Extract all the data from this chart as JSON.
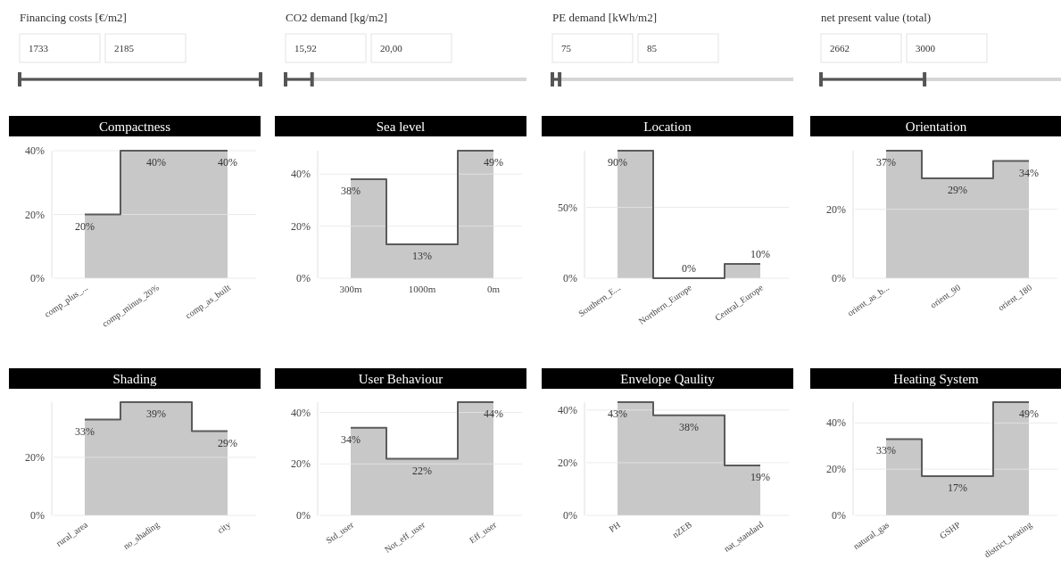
{
  "chart_data": [
    {
      "type": "other",
      "title": "Financing costs [€/m2]",
      "annotations": [
        "1733",
        "2185"
      ]
    },
    {
      "type": "other",
      "title": "CO2 demand [kg/m2]",
      "annotations": [
        "15,92",
        "20,00"
      ]
    },
    {
      "type": "other",
      "title": "PE demand [kWh/m2]",
      "annotations": [
        "75",
        "85"
      ]
    },
    {
      "type": "other",
      "title": "net present value (total)",
      "annotations": [
        "2662",
        "3000"
      ]
    },
    {
      "type": "area",
      "title": "Compactness",
      "categories": [
        "comp_plus_...",
        "comp_minus_20%",
        "comp_as_built"
      ],
      "values": [
        20,
        40,
        40
      ],
      "value_labels": [
        "20%",
        "40%",
        "40%"
      ],
      "color": "#c8c8c8",
      "ylim": [
        0,
        40
      ],
      "yticks": [
        {
          "value": 0,
          "label": "0%"
        },
        {
          "value": 20,
          "label": "20%"
        },
        {
          "value": 40,
          "label": "40%"
        }
      ],
      "grid": "y"
    },
    {
      "type": "area",
      "title": "Sea level",
      "categories": [
        "300m",
        "1000m",
        "0m"
      ],
      "values": [
        38,
        13,
        49
      ],
      "value_labels": [
        "38%",
        "13%",
        "49%"
      ],
      "color": "#c8c8c8",
      "ylim": [
        0,
        49
      ],
      "yticks": [
        {
          "value": 0,
          "label": "0%"
        },
        {
          "value": 20,
          "label": "20%"
        },
        {
          "value": 40,
          "label": "40%"
        }
      ],
      "grid": "y"
    },
    {
      "type": "area",
      "title": "Location",
      "categories": [
        "Southern_E...",
        "Northern_Europe",
        "Central_Europe"
      ],
      "values": [
        90,
        0,
        10
      ],
      "value_labels": [
        "90%",
        "0%",
        "10%"
      ],
      "color": "#c8c8c8",
      "ylim": [
        0,
        90
      ],
      "yticks": [
        {
          "value": 0,
          "label": "0%"
        },
        {
          "value": 50,
          "label": "50%"
        }
      ],
      "grid": "y"
    },
    {
      "type": "area",
      "title": "Orientation",
      "categories": [
        "orient_as_b...",
        "orient_90",
        "orient_180"
      ],
      "values": [
        37,
        29,
        34
      ],
      "value_labels": [
        "37%",
        "29%",
        "34%"
      ],
      "color": "#c8c8c8",
      "ylim": [
        0,
        37
      ],
      "yticks": [
        {
          "value": 0,
          "label": "0%"
        },
        {
          "value": 20,
          "label": "20%"
        }
      ],
      "grid": "y"
    },
    {
      "type": "area",
      "title": "Shading",
      "categories": [
        "rural_area",
        "no_shading",
        "city"
      ],
      "values": [
        33,
        39,
        29
      ],
      "value_labels": [
        "33%",
        "39%",
        "29%"
      ],
      "color": "#c8c8c8",
      "ylim": [
        0,
        39
      ],
      "yticks": [
        {
          "value": 0,
          "label": "0%"
        },
        {
          "value": 20,
          "label": "20%"
        }
      ],
      "grid": "y"
    },
    {
      "type": "area",
      "title": "User Behaviour",
      "categories": [
        "Std_user",
        "Not_eff_user",
        "Eff_user"
      ],
      "values": [
        34,
        22,
        44
      ],
      "value_labels": [
        "34%",
        "22%",
        "44%"
      ],
      "color": "#c8c8c8",
      "ylim": [
        0,
        44
      ],
      "yticks": [
        {
          "value": 0,
          "label": "0%"
        },
        {
          "value": 20,
          "label": "20%"
        },
        {
          "value": 40,
          "label": "40%"
        }
      ],
      "grid": "y"
    },
    {
      "type": "area",
      "title": "Envelope Qaulity",
      "categories": [
        "PH",
        "nZEB",
        "nat_standard"
      ],
      "values": [
        43,
        38,
        19
      ],
      "value_labels": [
        "43%",
        "38%",
        "19%"
      ],
      "color": "#c8c8c8",
      "ylim": [
        0,
        43
      ],
      "yticks": [
        {
          "value": 0,
          "label": "0%"
        },
        {
          "value": 20,
          "label": "20%"
        },
        {
          "value": 40,
          "label": "40%"
        }
      ],
      "grid": "y"
    },
    {
      "type": "area",
      "title": "Heating System",
      "categories": [
        "natural_gas",
        "GSHP",
        "district_heating"
      ],
      "values": [
        33,
        17,
        49
      ],
      "value_labels": [
        "33%",
        "17%",
        "49%"
      ],
      "color": "#c8c8c8",
      "ylim": [
        0,
        49
      ],
      "yticks": [
        {
          "value": 0,
          "label": "0%"
        },
        {
          "value": 20,
          "label": "20%"
        },
        {
          "value": 40,
          "label": "40%"
        }
      ],
      "grid": "y"
    }
  ]
}
